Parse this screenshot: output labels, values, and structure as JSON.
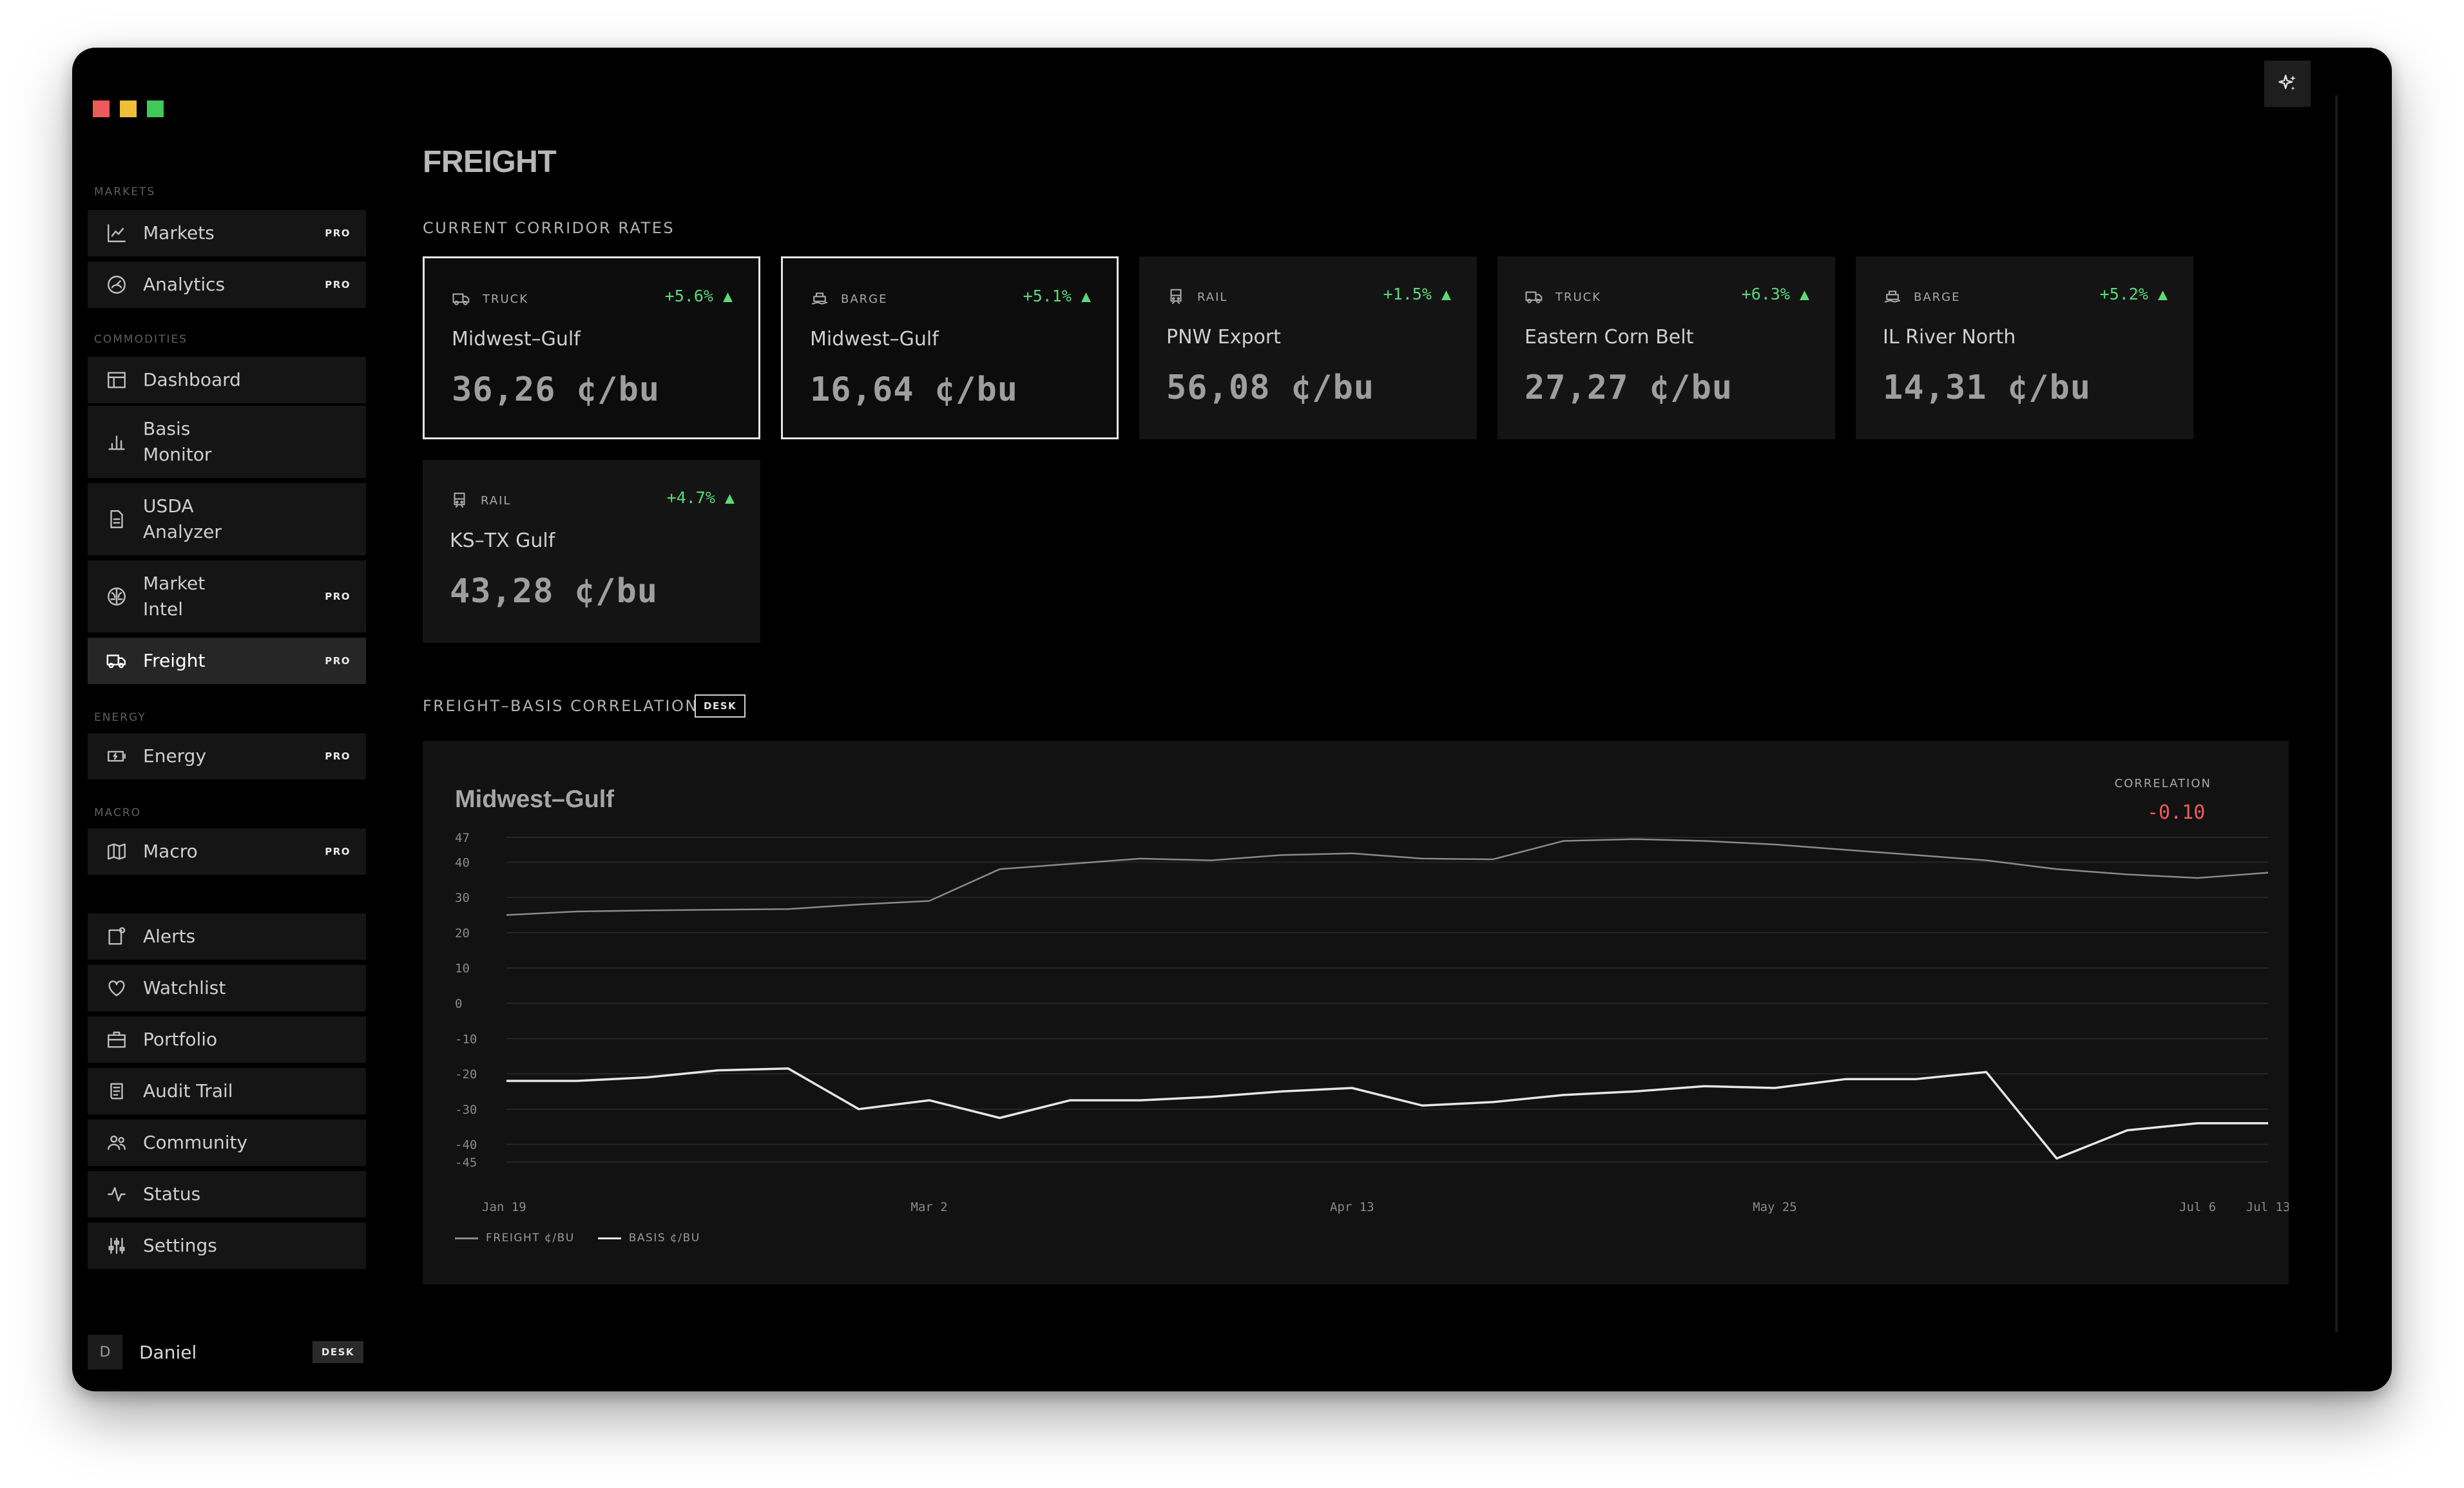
{
  "window": {
    "controls": {
      "close": "#ee5a5a",
      "minimize": "#efbf3a",
      "maximize": "#3ec95a"
    }
  },
  "sidebar": {
    "sections": {
      "markets": "MARKETS",
      "commodities": "COMMODITIES",
      "energy": "ENERGY",
      "macro": "MACRO"
    },
    "items": [
      {
        "label": "Markets",
        "badge": "PRO",
        "icon": "line-chart-icon"
      },
      {
        "label": "Analytics",
        "badge": "PRO",
        "icon": "gauge-icon"
      },
      {
        "label": "Dashboard",
        "badge": "",
        "icon": "layout-icon"
      },
      {
        "label": "Basis\nMonitor",
        "badge": "",
        "icon": "bar-chart-icon"
      },
      {
        "label": "USDA\nAnalyzer",
        "badge": "",
        "icon": "document-icon"
      },
      {
        "label": "Market\nIntel",
        "badge": "PRO",
        "icon": "brain-icon"
      },
      {
        "label": "Freight",
        "badge": "PRO",
        "icon": "truck-icon",
        "active": true
      },
      {
        "label": "Energy",
        "badge": "PRO",
        "icon": "battery-icon"
      },
      {
        "label": "Macro",
        "badge": "PRO",
        "icon": "map-icon"
      },
      {
        "label": "Alerts",
        "badge": "",
        "icon": "bell-icon"
      },
      {
        "label": "Watchlist",
        "badge": "",
        "icon": "heart-icon"
      },
      {
        "label": "Portfolio",
        "badge": "",
        "icon": "briefcase-icon"
      },
      {
        "label": "Audit Trail",
        "badge": "",
        "icon": "scroll-icon"
      },
      {
        "label": "Community",
        "badge": "",
        "icon": "people-icon"
      },
      {
        "label": "Status",
        "badge": "",
        "icon": "activity-icon"
      },
      {
        "label": "Settings",
        "badge": "",
        "icon": "sliders-icon"
      }
    ],
    "user": {
      "initial": "D",
      "name": "Daniel",
      "badge": "DESK"
    }
  },
  "page": {
    "title": "FREIGHT",
    "rates_heading": "CURRENT CORRIDOR RATES",
    "correlation_heading": "FREIGHT–BASIS CORRELATION",
    "correlation_badge": "DESK"
  },
  "corridors": [
    {
      "mode": "TRUCK",
      "change": "+5.6% ▲",
      "route": "Midwest–Gulf",
      "rate": "36,26 ¢/bu",
      "selected": true
    },
    {
      "mode": "BARGE",
      "change": "+5.1% ▲",
      "route": "Midwest–Gulf",
      "rate": "16,64 ¢/bu",
      "selected": true
    },
    {
      "mode": "RAIL",
      "change": "+1.5% ▲",
      "route": "PNW Export",
      "rate": "56,08 ¢/bu",
      "selected": false
    },
    {
      "mode": "TRUCK",
      "change": "+6.3% ▲",
      "route": "Eastern Corn Belt",
      "rate": "27,27 ¢/bu",
      "selected": false
    },
    {
      "mode": "BARGE",
      "change": "+5.2% ▲",
      "route": "IL River North",
      "rate": "14,31 ¢/bu",
      "selected": false
    },
    {
      "mode": "RAIL",
      "change": "+4.7% ▲",
      "route": "KS–TX Gulf",
      "rate": "43,28 ¢/bu",
      "selected": false
    }
  ],
  "chart_data": {
    "type": "line",
    "title": "Midwest–Gulf",
    "correlation_label": "CORRELATION",
    "correlation_value": "-0.10",
    "y_ticks": [
      47,
      40,
      30,
      20,
      10,
      0,
      -10,
      -20,
      -30,
      -40,
      -45
    ],
    "ylim": [
      -45,
      47
    ],
    "x_ticks": [
      "Jan 19",
      "Mar 2",
      "Apr 13",
      "May 25",
      "Jul 6",
      "Jul 13"
    ],
    "x_tick_weeks": [
      0,
      6,
      12,
      18,
      24,
      25
    ],
    "grid": true,
    "legend_position": "bottom-left",
    "series": [
      {
        "name": "FREIGHT ¢/BU",
        "color": "#8a8a8a",
        "values": [
          25,
          26,
          26.3,
          26.5,
          26.7,
          28,
          29,
          38,
          39.5,
          41,
          40.5,
          42,
          42.5,
          41,
          40.8,
          46,
          46.5,
          46,
          45,
          43.5,
          42,
          40.5,
          38,
          36.5,
          35.5,
          37
        ]
      },
      {
        "name": "BASIS ¢/BU",
        "color": "#e6e6e6",
        "values": [
          -22,
          -22,
          -21,
          -19,
          -18.5,
          -30,
          -27.5,
          -32.5,
          -27.5,
          -27.5,
          -26.5,
          -25,
          -24,
          -29,
          -28,
          -26,
          -25,
          -23.5,
          -24,
          -21.5,
          -21.5,
          -19.5,
          -44,
          -36,
          -34,
          -34
        ]
      }
    ]
  }
}
